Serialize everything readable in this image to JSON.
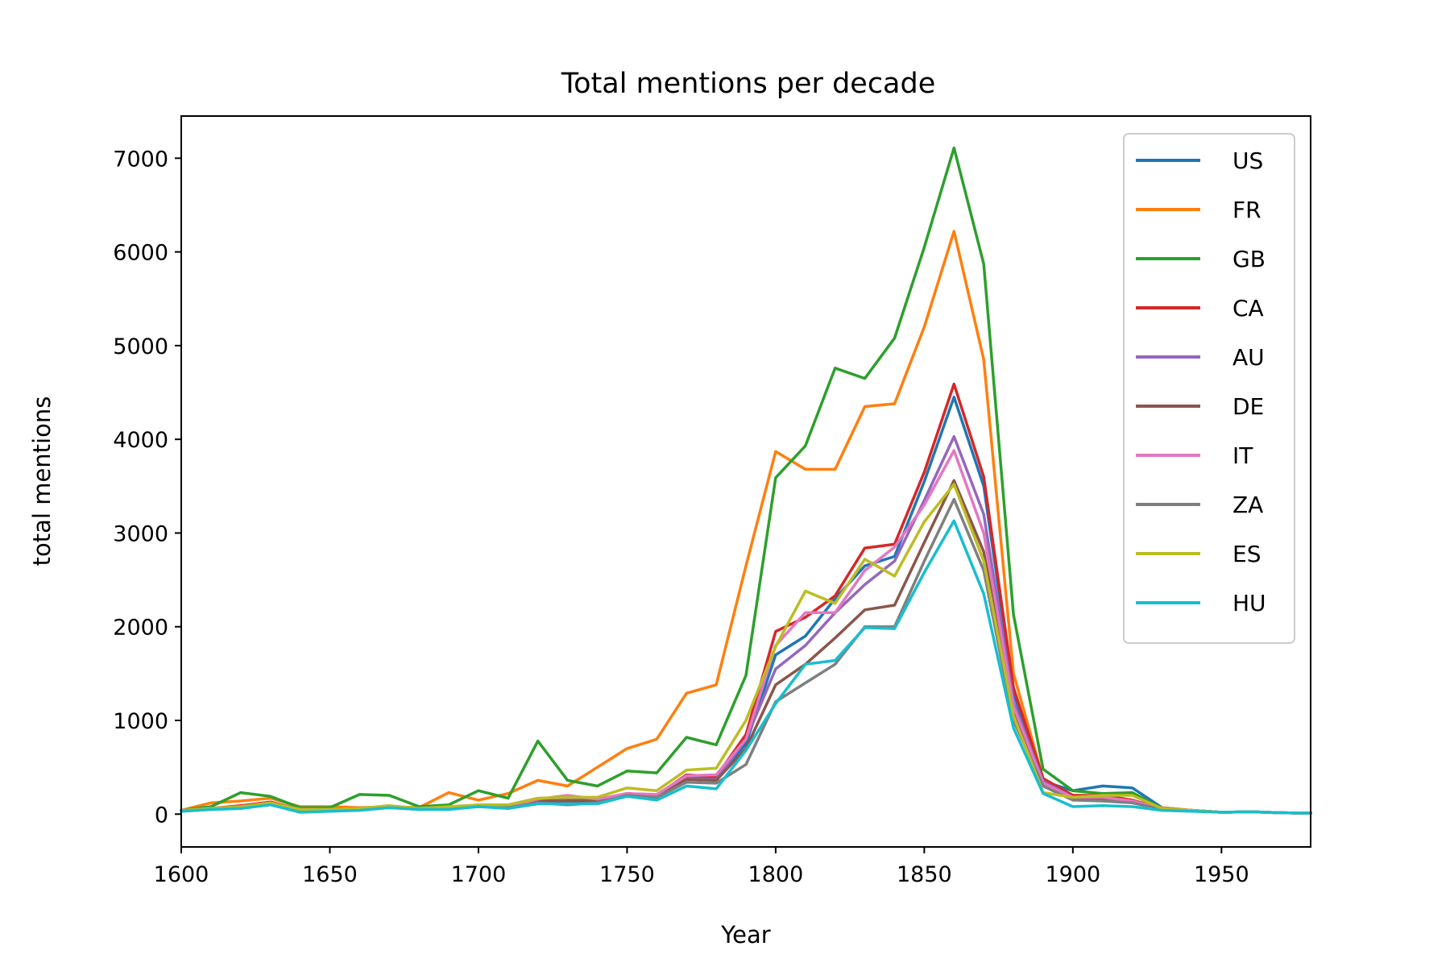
{
  "chart_data": {
    "type": "line",
    "title": "Total mentions per decade",
    "xlabel": "Year",
    "ylabel": "total mentions",
    "xlim": [
      1600,
      1980
    ],
    "ylim": [
      -350,
      7450
    ],
    "xticks": [
      1600,
      1650,
      1700,
      1750,
      1800,
      1850,
      1900,
      1950
    ],
    "yticks": [
      0,
      1000,
      2000,
      3000,
      4000,
      5000,
      6000,
      7000
    ],
    "grid": false,
    "legend_position": "top-right",
    "x": [
      1600,
      1610,
      1620,
      1630,
      1640,
      1650,
      1660,
      1670,
      1680,
      1690,
      1700,
      1710,
      1720,
      1730,
      1740,
      1750,
      1760,
      1770,
      1780,
      1790,
      1800,
      1810,
      1820,
      1830,
      1840,
      1850,
      1860,
      1870,
      1880,
      1890,
      1900,
      1910,
      1920,
      1930,
      1940,
      1950,
      1960,
      1970,
      1980
    ],
    "series": [
      {
        "name": "US",
        "color": "#1f77b4",
        "values": [
          40,
          60,
          80,
          120,
          50,
          50,
          60,
          80,
          60,
          70,
          90,
          80,
          140,
          110,
          150,
          220,
          200,
          400,
          380,
          750,
          1700,
          1900,
          2300,
          2650,
          2750,
          3550,
          4450,
          3500,
          1300,
          350,
          250,
          300,
          280,
          70,
          40,
          20,
          25,
          15,
          10
        ]
      },
      {
        "name": "FR",
        "color": "#ff7f0e",
        "values": [
          40,
          120,
          140,
          170,
          80,
          80,
          70,
          80,
          70,
          230,
          150,
          220,
          360,
          300,
          500,
          700,
          800,
          1290,
          1380,
          2650,
          3870,
          3680,
          3680,
          4350,
          4380,
          5200,
          6220,
          4850,
          1500,
          380,
          200,
          180,
          120,
          70,
          40,
          20,
          25,
          15,
          10
        ]
      },
      {
        "name": "GB",
        "color": "#2ca02c",
        "values": [
          40,
          80,
          230,
          190,
          70,
          70,
          210,
          200,
          80,
          100,
          250,
          170,
          780,
          360,
          300,
          460,
          440,
          820,
          740,
          1480,
          3590,
          3930,
          4760,
          4650,
          5080,
          6050,
          7110,
          5870,
          2130,
          480,
          250,
          220,
          230,
          60,
          40,
          20,
          25,
          15,
          10
        ]
      },
      {
        "name": "CA",
        "color": "#d62728",
        "values": [
          40,
          60,
          90,
          130,
          50,
          50,
          60,
          80,
          60,
          70,
          90,
          80,
          150,
          150,
          150,
          220,
          200,
          420,
          400,
          850,
          1950,
          2100,
          2330,
          2840,
          2880,
          3650,
          4590,
          3600,
          1350,
          380,
          200,
          200,
          150,
          60,
          40,
          20,
          25,
          15,
          10
        ]
      },
      {
        "name": "AU",
        "color": "#9467bd",
        "values": [
          40,
          60,
          80,
          120,
          50,
          50,
          60,
          80,
          60,
          70,
          90,
          80,
          150,
          150,
          150,
          210,
          200,
          380,
          370,
          800,
          1550,
          1800,
          2150,
          2450,
          2700,
          3350,
          4030,
          3200,
          1200,
          350,
          180,
          170,
          130,
          60,
          40,
          20,
          25,
          15,
          10
        ]
      },
      {
        "name": "DE",
        "color": "#8c564b",
        "values": [
          40,
          60,
          80,
          120,
          50,
          50,
          60,
          80,
          60,
          70,
          90,
          80,
          140,
          140,
          140,
          210,
          200,
          370,
          360,
          700,
          1380,
          1600,
          1880,
          2180,
          2230,
          2900,
          3560,
          2800,
          1100,
          320,
          170,
          160,
          130,
          60,
          40,
          20,
          25,
          15,
          10
        ]
      },
      {
        "name": "IT",
        "color": "#e377c2",
        "values": [
          40,
          60,
          80,
          120,
          50,
          50,
          60,
          80,
          60,
          70,
          90,
          80,
          160,
          200,
          160,
          220,
          210,
          410,
          420,
          800,
          1800,
          2150,
          2150,
          2600,
          2850,
          3300,
          3880,
          3000,
          1150,
          330,
          180,
          180,
          140,
          60,
          40,
          20,
          25,
          15,
          10
        ]
      },
      {
        "name": "ZA",
        "color": "#7f7f7f",
        "values": [
          30,
          50,
          60,
          100,
          40,
          40,
          50,
          70,
          50,
          60,
          80,
          70,
          120,
          100,
          120,
          200,
          180,
          340,
          330,
          530,
          1200,
          1400,
          1600,
          2000,
          2000,
          2700,
          3360,
          2600,
          1000,
          300,
          150,
          140,
          120,
          50,
          40,
          20,
          25,
          15,
          10
        ]
      },
      {
        "name": "ES",
        "color": "#bcbd22",
        "values": [
          40,
          60,
          80,
          120,
          50,
          50,
          60,
          90,
          60,
          80,
          100,
          100,
          170,
          180,
          180,
          280,
          250,
          470,
          490,
          1000,
          1790,
          2380,
          2250,
          2720,
          2540,
          3120,
          3520,
          2700,
          1050,
          230,
          180,
          200,
          200,
          60,
          40,
          20,
          25,
          15,
          10
        ]
      },
      {
        "name": "HU",
        "color": "#17becf",
        "values": [
          30,
          50,
          60,
          100,
          20,
          30,
          40,
          70,
          50,
          50,
          80,
          60,
          110,
          110,
          110,
          190,
          150,
          300,
          270,
          680,
          1180,
          1600,
          1640,
          1990,
          1980,
          2580,
          3130,
          2350,
          920,
          220,
          80,
          90,
          80,
          40,
          30,
          20,
          25,
          15,
          10
        ]
      }
    ]
  }
}
